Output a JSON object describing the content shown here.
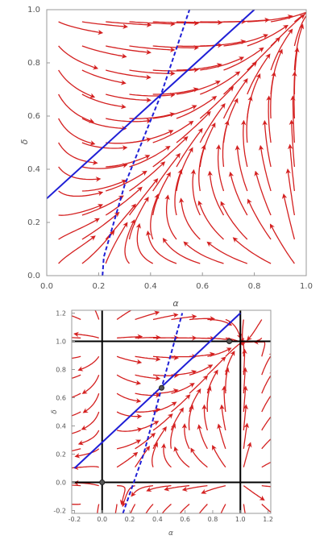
{
  "colors": {
    "stream": "#d42020",
    "blue_line": "#1f1fd6",
    "frame": "#999999",
    "grid_lines": "#000000",
    "point": "#555555"
  },
  "chart_data": [
    {
      "type": "stream plot",
      "xlabel": "α",
      "ylabel": "δ",
      "xlim": [
        0,
        1
      ],
      "ylim": [
        0,
        1
      ],
      "x_ticks": [
        "0.0",
        "0.2",
        "0.4",
        "0.6",
        "0.8",
        "1.0"
      ],
      "y_ticks": [
        "0.0",
        "0.2",
        "0.4",
        "0.6",
        "0.8",
        "1.0"
      ],
      "series": [
        {
          "style": "solid blue line",
          "points": [
            [
              0,
              0.29
            ],
            [
              0.8,
              1.0
            ]
          ]
        },
        {
          "style": "dashed blue line",
          "points": [
            [
              0.215,
              0.0
            ],
            [
              0.22,
              0.07
            ],
            [
              0.3,
              0.34
            ],
            [
              0.44,
              0.68
            ],
            [
              0.55,
              1.0
            ]
          ]
        }
      ],
      "grid": false
    },
    {
      "type": "stream plot",
      "xlabel": "α",
      "ylabel": "δ",
      "xlim": [
        -0.22,
        1.22
      ],
      "ylim": [
        -0.22,
        1.22
      ],
      "x_ticks": [
        "-0.2",
        "0.0",
        "0.2",
        "0.4",
        "0.6",
        "0.8",
        "1.0",
        "1.2"
      ],
      "y_ticks": [
        "-0.2",
        "0.0",
        "0.2",
        "0.4",
        "0.6",
        "0.8",
        "1.0",
        "1.2"
      ],
      "series": [
        {
          "style": "solid blue line",
          "points": [
            [
              -0.2,
              0.1
            ],
            [
              1.0,
              1.2
            ]
          ]
        },
        {
          "style": "dashed blue line",
          "points": [
            [
              0.15,
              -0.22
            ],
            [
              0.3,
              0.2
            ],
            [
              0.43,
              0.67
            ],
            [
              0.58,
              1.2
            ]
          ]
        }
      ],
      "reference_lines": {
        "x": [
          0,
          1
        ],
        "y": [
          0,
          1
        ]
      },
      "points": [
        [
          0,
          0
        ],
        [
          0.43,
          0.67
        ],
        [
          0.92,
          1.0
        ]
      ],
      "grid": false
    }
  ]
}
